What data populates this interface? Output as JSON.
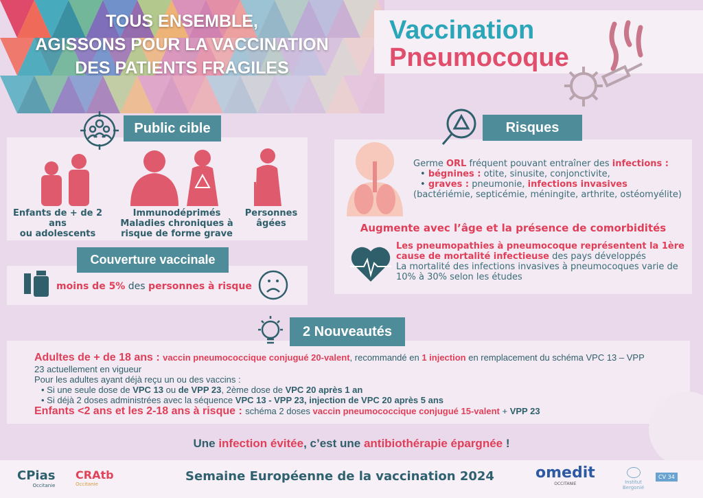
{
  "header": {
    "title_lines": [
      "TOUS ENSEMBLE,",
      "AGISSONS POUR LA VACCINATION",
      "DES PATIENTS FRAGILES"
    ],
    "brand_line1": "Vaccination",
    "brand_line2": "Pneumocoque"
  },
  "colors": {
    "teal": "#4f8c99",
    "red": "#df3f58",
    "dark": "#2f5f6b",
    "brand_teal": "#2aa6b8",
    "brand_pink": "#e14e6b",
    "background": "#e9d9ea"
  },
  "public_cible": {
    "title": "Public cible",
    "icon": "target-group-icon",
    "groups": [
      {
        "label1": "Enfants de + de 2 ans",
        "label2": "ou adolescents",
        "label3": ""
      },
      {
        "label1": "Immunodéprimés",
        "label2": "Maladies chroniques à",
        "label3": "risque de forme grave"
      },
      {
        "label1": "Personnes",
        "label2": "âgées",
        "label3": ""
      }
    ]
  },
  "couverture": {
    "title": "Couverture vaccinale",
    "icon": "vaccine-vial-icon",
    "end_icon": "sad-face-icon",
    "text": [
      {
        "t": "moins de 5%",
        "s": "r"
      },
      {
        "t": " des ",
        "s": "n"
      },
      {
        "t": "personnes à risque",
        "s": "r"
      }
    ]
  },
  "risques": {
    "title": "Risques",
    "icon": "magnifier-warning-icon",
    "intro": [
      {
        "t": "Germe ",
        "s": "n"
      },
      {
        "t": "ORL",
        "s": "r"
      },
      {
        "t": " fréquent pouvant entraîner des ",
        "s": "n"
      },
      {
        "t": "infections :",
        "s": "r"
      }
    ],
    "bullets": [
      [
        {
          "t": "bégnines :",
          "s": "r"
        },
        {
          "t": " otite, sinusite, conjonctivite,",
          "s": "n"
        }
      ],
      [
        {
          "t": "graves :",
          "s": "r"
        },
        {
          "t": " pneumonie, ",
          "s": "n"
        },
        {
          "t": "infections invasives",
          "s": "r"
        }
      ]
    ],
    "detail": "(bactériémie, septicémie, méningite, arthrite, ostéomyélite)",
    "age": "Augmente avec l’âge et la présence de comorbidités",
    "mortality": [
      {
        "t": "Les pneumopathies à pneumocoque représentent la 1ère cause de mortalité infectieuse",
        "s": "r"
      },
      {
        "t": " des pays développés",
        "s": "n"
      }
    ],
    "mortality2": "La mortalité des infections invasives à pneumocoques varie de 10% à 30% selon les études"
  },
  "nouveautes": {
    "title": "2 Nouveautés",
    "icon": "lightbulb-icon",
    "adultes": [
      {
        "t": "Adultes de + de 18 ans : ",
        "s": "rb"
      },
      {
        "t": "vaccin pneumococcique conjugué 20-valent",
        "s": "r"
      },
      {
        "t": ", recommandé en ",
        "s": "n"
      },
      {
        "t": "1 injection",
        "s": "r"
      },
      {
        "t": " en remplacement du schéma VPC 13 – VPP 23 actuellement en vigueur",
        "s": "n"
      }
    ],
    "deja": "Pour les adultes ayant déjà reçu un ou des vaccins :",
    "bullets": [
      [
        {
          "t": "Si une seule dose de ",
          "s": "n"
        },
        {
          "t": "VPC 13",
          "s": "b"
        },
        {
          "t": " ou ",
          "s": "n"
        },
        {
          "t": "de VPP 23",
          "s": "b"
        },
        {
          "t": ", 2ème dose de ",
          "s": "n"
        },
        {
          "t": "VPC 20 après 1 an",
          "s": "b"
        }
      ],
      [
        {
          "t": "Si déjà 2 doses administrées avec la séquence ",
          "s": "n"
        },
        {
          "t": "VPC 13 - VPP 23, injection de VPC 20 après 5 ans",
          "s": "b"
        }
      ]
    ],
    "enfants": [
      {
        "t": "Enfants <2 ans et les 2-18 ans à risque : ",
        "s": "rb"
      },
      {
        "t": " schéma 2 doses ",
        "s": "n"
      },
      {
        "t": "vaccin pneumococcique conjugué 15-valent",
        "s": "r"
      },
      {
        "t": " + ",
        "s": "n"
      },
      {
        "t": "VPP 23",
        "s": "b"
      }
    ]
  },
  "slogan": [
    {
      "t": "Une ",
      "s": "b"
    },
    {
      "t": "infection évitée",
      "s": "r"
    },
    {
      "t": ", c’est une ",
      "s": "b"
    },
    {
      "t": "antibiothérapie épargnée",
      "s": "r"
    },
    {
      "t": " !",
      "s": "b"
    }
  ],
  "footer": {
    "title": "Semaine Européenne de la vaccination 2024",
    "logos": [
      "CPias",
      "CRAtb",
      "omedit",
      "Institut Bergonié"
    ],
    "cpias_sub": "Occitanie",
    "cratb_sub": "Occitanie",
    "omedit_sub": "OCCITANIE",
    "cv": "CV 34"
  }
}
